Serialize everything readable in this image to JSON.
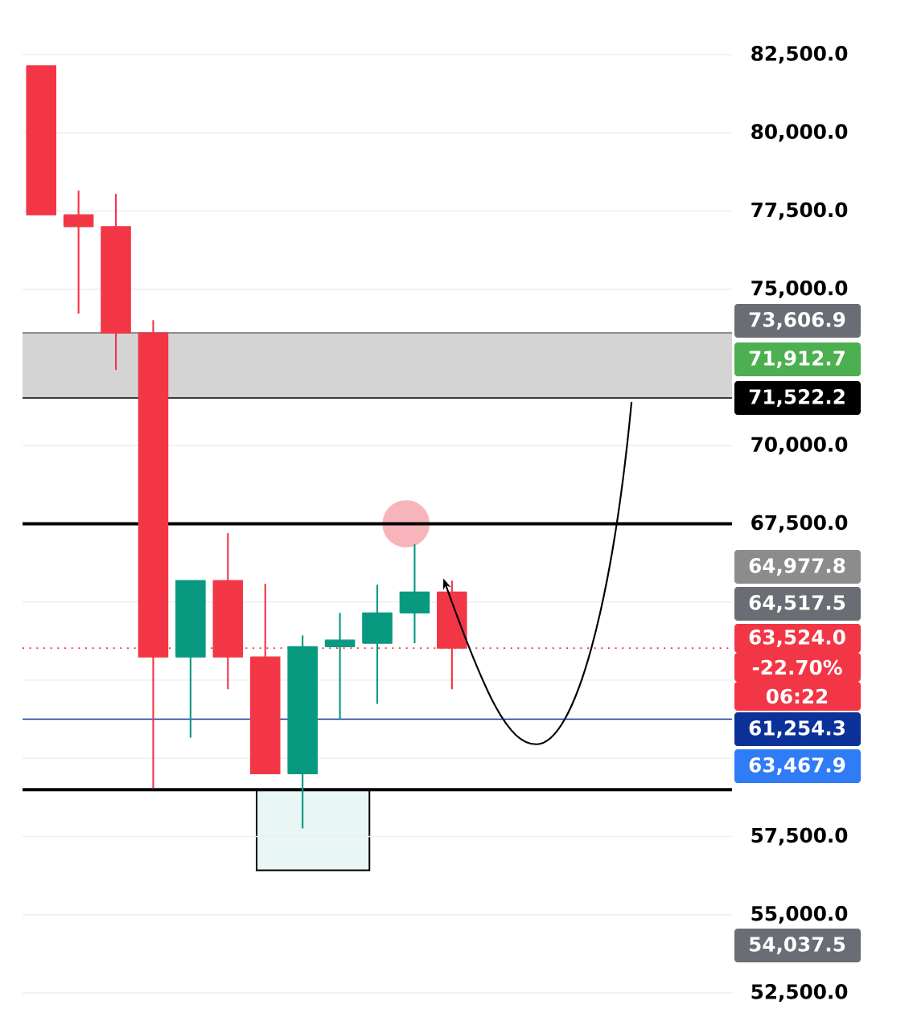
{
  "chart_data": {
    "type": "candlestick",
    "categories": [
      null,
      null,
      null,
      null,
      null,
      null,
      null,
      null,
      null,
      null,
      null,
      null,
      null,
      null,
      null,
      null,
      null,
      null,
      null
    ],
    "ohlc": [
      [
        82140,
        82140,
        77380,
        77380
      ],
      [
        77380,
        78150,
        74220,
        77000
      ],
      [
        77000,
        78050,
        72420,
        73600
      ],
      [
        73600,
        74010,
        59040,
        63240
      ],
      [
        63240,
        65680,
        60660,
        65680
      ],
      [
        65680,
        67200,
        62210,
        63240
      ],
      [
        63240,
        65580,
        59510,
        59510
      ],
      [
        59510,
        63930,
        57760,
        63570
      ],
      [
        63570,
        64650,
        61230,
        63780
      ],
      [
        63680,
        65550,
        61740,
        64650
      ],
      [
        64650,
        66840,
        63680,
        65320
      ],
      [
        65320,
        65680,
        62210,
        63524
      ],
      null,
      null,
      null,
      null,
      null,
      null,
      null
    ],
    "colors": [
      "#f23645",
      "#f23645",
      "#f23645",
      "#f23645",
      "#089981",
      "#f23645",
      "#f23645",
      "#089981",
      "#089981",
      "#089981",
      "#089981",
      "#f23645",
      null,
      null,
      null,
      null,
      null,
      null,
      null
    ],
    "ylim": [
      52500,
      82500
    ],
    "yticks": [
      {
        "value": 52500,
        "label": "52,500.0"
      },
      {
        "value": 55000,
        "label": "55,000.0"
      },
      {
        "value": 57500,
        "label": "57,500.0"
      },
      {
        "value": 60000,
        "label": null
      },
      {
        "value": 62500,
        "label": null
      },
      {
        "value": 65000,
        "label": null
      },
      {
        "value": 67500,
        "label": "67,500.0"
      },
      {
        "value": 70000,
        "label": "70,000.0"
      },
      {
        "value": 72500,
        "label": null
      },
      {
        "value": 75000,
        "label": "75,000.0"
      },
      {
        "value": 77500,
        "label": "77,500.0"
      },
      {
        "value": 80000,
        "label": "80,000.0"
      },
      {
        "value": 82500,
        "label": "82,500.0"
      }
    ],
    "grid": "y",
    "bands": [
      {
        "axis": "y",
        "from": 71522.2,
        "to": 73606.9,
        "color": "#d4d4d4"
      }
    ],
    "ref_lines": [
      {
        "axis": "y",
        "value": 73606.9,
        "label": "73,606.9",
        "color": "#6a6d73"
      },
      {
        "axis": "y",
        "value": 71522.2,
        "label": "71,522.2",
        "color": "#000000"
      },
      {
        "axis": "y",
        "value": 67500,
        "color": "#000000"
      },
      {
        "axis": "y",
        "value": 63524.0,
        "label": "63,524.0",
        "color": "#f23645",
        "line_style": "dotted"
      },
      {
        "axis": "y",
        "value": 61254.3,
        "label": "61,254.3",
        "color": "#0c3299"
      },
      {
        "axis": "y",
        "value": 59000,
        "color": "#000000"
      }
    ],
    "annotations": [
      "71,912.7",
      "64,977.8",
      "64,517.5",
      "-22.70%",
      "06:22",
      "63,467.9",
      "54,037.5"
    ]
  }
}
